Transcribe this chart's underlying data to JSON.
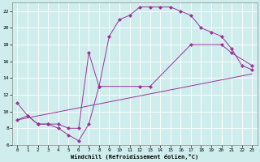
{
  "line1_x": [
    0,
    1,
    2,
    3,
    4,
    5,
    6,
    7,
    8,
    9,
    10,
    11,
    12,
    13,
    14,
    15,
    16,
    17,
    18,
    19,
    20,
    21,
    22,
    23
  ],
  "line1_y": [
    11.0,
    9.5,
    8.5,
    8.5,
    8.0,
    7.2,
    6.5,
    8.5,
    13.0,
    19.0,
    21.0,
    21.5,
    22.5,
    22.5,
    22.5,
    22.5,
    22.0,
    21.5,
    20.0,
    19.5,
    19.0,
    17.5,
    15.5,
    15.0
  ],
  "line2_x": [
    0,
    1,
    2,
    3,
    4,
    5,
    6,
    7,
    8,
    12,
    13,
    17,
    20,
    21,
    23
  ],
  "line2_y": [
    9.0,
    9.5,
    8.5,
    8.5,
    8.5,
    8.0,
    8.0,
    17.0,
    13.0,
    13.0,
    13.0,
    18.0,
    18.0,
    17.0,
    15.5
  ],
  "line3_x": [
    0,
    23
  ],
  "line3_y": [
    9.0,
    14.5
  ],
  "line_color": "#993399",
  "bg_color": "#d0eded",
  "xlabel": "Windchill (Refroidissement éolien,°C)",
  "xlim": [
    -0.5,
    23.5
  ],
  "ylim": [
    6,
    23
  ],
  "yticks": [
    6,
    8,
    10,
    12,
    14,
    16,
    18,
    20,
    22
  ],
  "xticks": [
    0,
    1,
    2,
    3,
    4,
    5,
    6,
    7,
    8,
    9,
    10,
    11,
    12,
    13,
    14,
    15,
    16,
    17,
    18,
    19,
    20,
    21,
    22,
    23
  ]
}
